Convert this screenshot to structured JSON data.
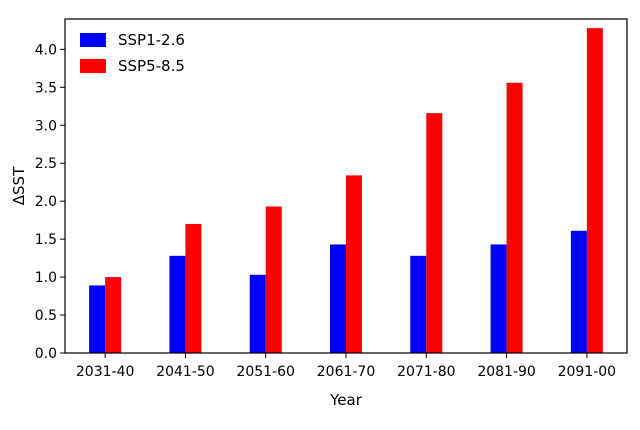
{
  "chart_data": {
    "type": "bar",
    "title": "",
    "xlabel": "Year",
    "ylabel": "ΔSST",
    "categories": [
      "2031-40",
      "2041-50",
      "2051-60",
      "2061-70",
      "2071-80",
      "2081-90",
      "2091-00"
    ],
    "series": [
      {
        "name": "SSP1-2.6",
        "color": "#0000ff",
        "values": [
          0.89,
          1.28,
          1.03,
          1.43,
          1.28,
          1.43,
          1.61
        ]
      },
      {
        "name": "SSP5-8.5",
        "color": "#ff0000",
        "values": [
          1.0,
          1.7,
          1.93,
          2.34,
          3.16,
          3.56,
          4.28
        ]
      }
    ],
    "ylim": [
      0,
      4.4
    ],
    "yticks": [
      "0.0",
      "0.5",
      "1.0",
      "1.5",
      "2.0",
      "2.5",
      "3.0",
      "3.5",
      "4.0"
    ],
    "grid": false,
    "legend": "top-left"
  }
}
